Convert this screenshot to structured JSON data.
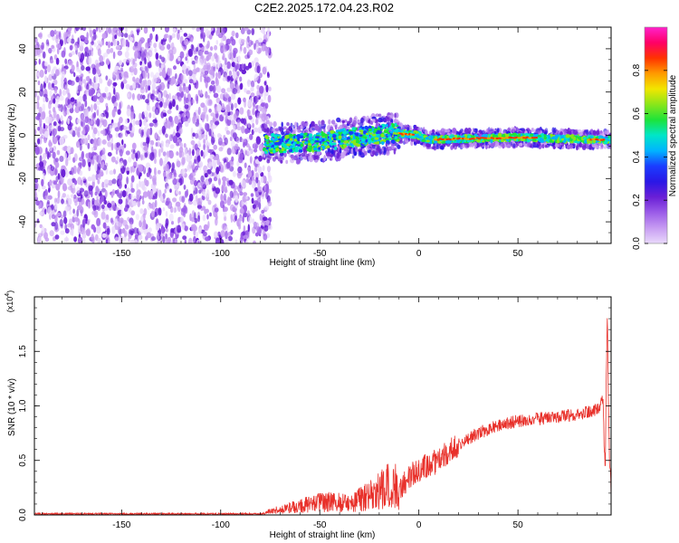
{
  "figure": {
    "title": "C2E2.2025.172.04.23.R02"
  },
  "colors": {
    "snr_line": "#e8302a",
    "plot_frame": "#000000",
    "spectrogram_scale": [
      "#ffffff",
      "#e9d9fb",
      "#c79cf2",
      "#9b5ce8",
      "#6a1fd6",
      "#2a17e6",
      "#1a3cff",
      "#00b4ff",
      "#00e6c8",
      "#1de33a",
      "#8ae61a",
      "#f2e600",
      "#ff9a00",
      "#ff3300",
      "#ff0066",
      "#ff22cc"
    ]
  },
  "chart_data": [
    {
      "type": "heatmap",
      "title": "",
      "xlabel": "Height of straight line (km)",
      "ylabel": "Frequency (Hz)",
      "xlim": [
        -194,
        97
      ],
      "ylim": [
        -50,
        50
      ],
      "xticks": [
        -150,
        -100,
        -50,
        0,
        50
      ],
      "yticks": [
        -40,
        -20,
        0,
        20,
        40
      ],
      "colorbar": {
        "label": "Normalized spectral amplitude",
        "range": [
          0.0,
          1.0
        ],
        "ticks": [
          "0.0",
          "0.2",
          "0.4",
          "0.6",
          "0.8"
        ]
      },
      "features": {
        "scattered_noise_region_km": [
          -194,
          -78
        ],
        "signal_band_region_km": [
          -78,
          97
        ],
        "signal_center_frequency_hz": [
          {
            "x": -78,
            "y": -4
          },
          {
            "x": -50,
            "y": -3
          },
          {
            "x": -25,
            "y": 0
          },
          {
            "x": -12,
            "y": 1
          },
          {
            "x": 0,
            "y": 0
          },
          {
            "x": 4,
            "y": -2
          },
          {
            "x": 50,
            "y": -1
          },
          {
            "x": 90,
            "y": -2
          }
        ]
      }
    },
    {
      "type": "line",
      "title": "",
      "xlabel": "Height of straight line (km)",
      "ylabel": "SNR (10 * v/v)",
      "multiplier": "(x10",
      "multiplier_exp": "4",
      "multiplier_close": ")",
      "xlim": [
        -194,
        97
      ],
      "ylim": [
        0,
        2.0
      ],
      "xticks": [
        -150,
        -100,
        -50,
        0,
        50
      ],
      "yticks": [
        "0.0",
        "0.5",
        "1.0",
        "1.5"
      ],
      "series": [
        {
          "envelope": [
            {
              "x": -194,
              "y": 0.01
            },
            {
              "x": -80,
              "y": 0.01
            },
            {
              "x": -75,
              "y": 0.05
            },
            {
              "x": -60,
              "y": 0.12
            },
            {
              "x": -45,
              "y": 0.18
            },
            {
              "x": -35,
              "y": 0.15
            },
            {
              "x": -25,
              "y": 0.25
            },
            {
              "x": -18,
              "y": 0.35
            },
            {
              "x": -12,
              "y": 0.42
            },
            {
              "x": -10,
              "y": 0.2
            },
            {
              "x": -5,
              "y": 0.35
            },
            {
              "x": 0,
              "y": 0.42
            },
            {
              "x": 10,
              "y": 0.5
            },
            {
              "x": 20,
              "y": 0.65
            },
            {
              "x": 30,
              "y": 0.75
            },
            {
              "x": 40,
              "y": 0.82
            },
            {
              "x": 50,
              "y": 0.86
            },
            {
              "x": 60,
              "y": 0.88
            },
            {
              "x": 70,
              "y": 0.9
            },
            {
              "x": 80,
              "y": 0.92
            },
            {
              "x": 90,
              "y": 0.96
            },
            {
              "x": 93,
              "y": 1.05
            },
            {
              "x": 94,
              "y": 0.3
            },
            {
              "x": 95,
              "y": 1.9
            },
            {
              "x": 96,
              "y": 0.6
            },
            {
              "x": 97,
              "y": 0.2
            }
          ]
        }
      ]
    }
  ]
}
